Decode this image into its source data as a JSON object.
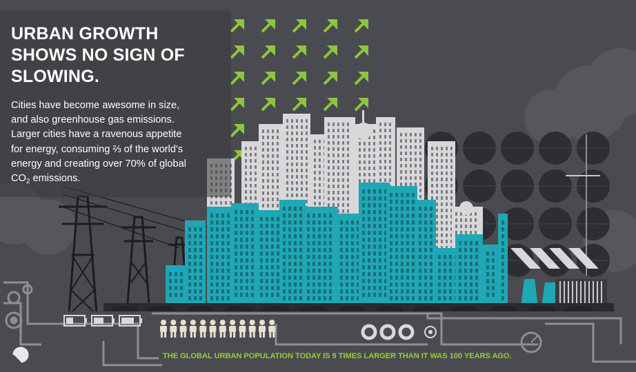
{
  "headline": "URBAN GROWTH SHOWS NO SIGN OF SLOWING.",
  "body_lines": [
    "Cities have become awesome in size,",
    "and also greenhouse gas emissions.",
    "Larger cities have a ravenous appetite",
    "for energy, consuming ⅔ of the world's",
    "energy and creating over 70% of global"
  ],
  "body_last_line": {
    "prefix": "CO",
    "subscript": "2",
    "suffix": " emissions."
  },
  "footer_fact": "THE GLOBAL URBAN POPULATION TODAY IS 9 TIMES LARGER THAN IT WAS 100 YEARS AGO.",
  "pictogram_people_count": 12,
  "colors": {
    "background": "#4a4b50",
    "arrow_green": "#8cc63f",
    "teal_building": "#1fa7b5",
    "grey_building": "#d8d8da",
    "footer_text": "#9ccb3b",
    "dark_circle": "#2d2e32"
  }
}
